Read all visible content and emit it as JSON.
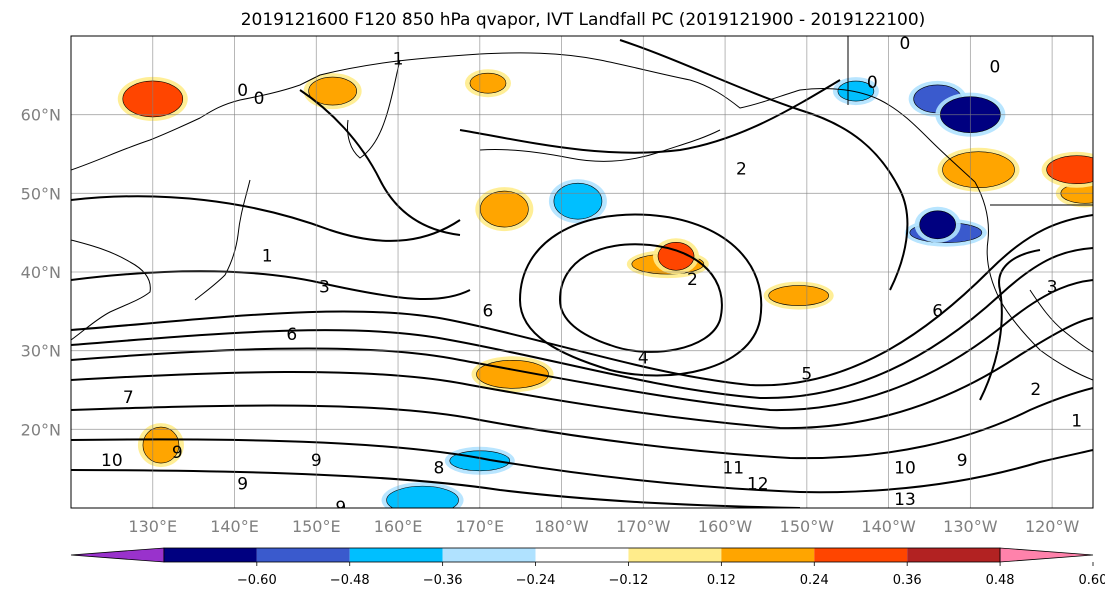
{
  "title": "2019121600 F120 850 hPa qvapor, IVT Landfall PC (2019121900 - 2019122100)",
  "map": {
    "lon_range": [
      120,
      245
    ],
    "lat_range": [
      10,
      70
    ],
    "lon_ticks": [
      {
        "value": 130,
        "label": "130°E"
      },
      {
        "value": 140,
        "label": "140°E"
      },
      {
        "value": 150,
        "label": "150°E"
      },
      {
        "value": 160,
        "label": "160°E"
      },
      {
        "value": 170,
        "label": "170°E"
      },
      {
        "value": 180,
        "label": "180°W"
      },
      {
        "value": 190,
        "label": "170°W"
      },
      {
        "value": 200,
        "label": "160°W"
      },
      {
        "value": 210,
        "label": "150°W"
      },
      {
        "value": 220,
        "label": "140°W"
      },
      {
        "value": 230,
        "label": "130°W"
      },
      {
        "value": 240,
        "label": "120°W"
      }
    ],
    "lat_ticks": [
      {
        "value": 20,
        "label": "20°N"
      },
      {
        "value": 30,
        "label": "30°N"
      },
      {
        "value": 40,
        "label": "40°N"
      },
      {
        "value": 50,
        "label": "50°N"
      },
      {
        "value": 60,
        "label": "60°N"
      }
    ],
    "grid": true,
    "contour_labels": [
      {
        "text": "1",
        "lon": 160,
        "lat": 67
      },
      {
        "text": "0",
        "lon": 141,
        "lat": 63
      },
      {
        "text": "0",
        "lon": 143,
        "lat": 62
      },
      {
        "text": "0",
        "lon": 222,
        "lat": 69
      },
      {
        "text": "0",
        "lon": 218,
        "lat": 64
      },
      {
        "text": "0",
        "lon": 233,
        "lat": 66
      },
      {
        "text": "2",
        "lon": 202,
        "lat": 53
      },
      {
        "text": "1",
        "lon": 144,
        "lat": 42
      },
      {
        "text": "3",
        "lon": 151,
        "lat": 38
      },
      {
        "text": "6",
        "lon": 147,
        "lat": 32
      },
      {
        "text": "6",
        "lon": 171,
        "lat": 35
      },
      {
        "text": "2",
        "lon": 196,
        "lat": 39
      },
      {
        "text": "4",
        "lon": 190,
        "lat": 29
      },
      {
        "text": "5",
        "lon": 210,
        "lat": 27
      },
      {
        "text": "6",
        "lon": 226,
        "lat": 35
      },
      {
        "text": "3",
        "lon": 240,
        "lat": 38
      },
      {
        "text": "2",
        "lon": 238,
        "lat": 25
      },
      {
        "text": "1",
        "lon": 243,
        "lat": 21
      },
      {
        "text": "7",
        "lon": 127,
        "lat": 24
      },
      {
        "text": "10",
        "lon": 125,
        "lat": 16
      },
      {
        "text": "9",
        "lon": 133,
        "lat": 17
      },
      {
        "text": "9",
        "lon": 141,
        "lat": 13
      },
      {
        "text": "9",
        "lon": 150,
        "lat": 16
      },
      {
        "text": "8",
        "lon": 165,
        "lat": 15
      },
      {
        "text": "9",
        "lon": 153,
        "lat": 10
      },
      {
        "text": "11",
        "lon": 201,
        "lat": 15
      },
      {
        "text": "12",
        "lon": 204,
        "lat": 13
      },
      {
        "text": "10",
        "lon": 222,
        "lat": 15
      },
      {
        "text": "9",
        "lon": 229,
        "lat": 16
      },
      {
        "text": "13",
        "lon": 222,
        "lat": 11
      }
    ]
  },
  "colorbar": {
    "colors": [
      "#9932cc",
      "#000080",
      "#3a5acd",
      "#00bfff",
      "#b0e2ff",
      "#ffffff",
      "#ffec8b",
      "#ffa500",
      "#ff4500",
      "#b22222",
      "#ff82ab"
    ],
    "tick_labels": [
      "−0.60",
      "−0.48",
      "−0.36",
      "−0.24",
      "−0.12",
      "0.12",
      "0.24",
      "0.36",
      "0.48",
      "0.60"
    ]
  },
  "anomaly_features": [
    {
      "color": "#ffa500",
      "lon": 171,
      "lat": 64
    },
    {
      "color": "#ffa500",
      "lon": 152,
      "lat": 63
    },
    {
      "color": "#ff4500",
      "lon": 130,
      "lat": 62
    },
    {
      "color": "#ffa500",
      "lon": 193,
      "lat": 41
    },
    {
      "color": "#ff4500",
      "lon": 194,
      "lat": 42
    },
    {
      "color": "#ffa500",
      "lon": 173,
      "lat": 48
    },
    {
      "color": "#ffa500",
      "lon": 209,
      "lat": 37
    },
    {
      "color": "#ffa500",
      "lon": 174,
      "lat": 27
    },
    {
      "color": "#ffa500",
      "lon": 131,
      "lat": 18
    },
    {
      "color": "#ffa500",
      "lon": 244,
      "lat": 50
    },
    {
      "color": "#ff4500",
      "lon": 243,
      "lat": 53
    },
    {
      "color": "#ffa500",
      "lon": 231,
      "lat": 53
    },
    {
      "color": "#00bfff",
      "lon": 216,
      "lat": 63
    },
    {
      "color": "#3a5acd",
      "lon": 226,
      "lat": 62
    },
    {
      "color": "#000080",
      "lon": 230,
      "lat": 60
    },
    {
      "color": "#3a5acd",
      "lon": 227,
      "lat": 45
    },
    {
      "color": "#000080",
      "lon": 226,
      "lat": 46
    },
    {
      "color": "#00bfff",
      "lon": 182,
      "lat": 49
    },
    {
      "color": "#00bfff",
      "lon": 170,
      "lat": 16
    },
    {
      "color": "#00bfff",
      "lon": 163,
      "lat": 11
    }
  ]
}
